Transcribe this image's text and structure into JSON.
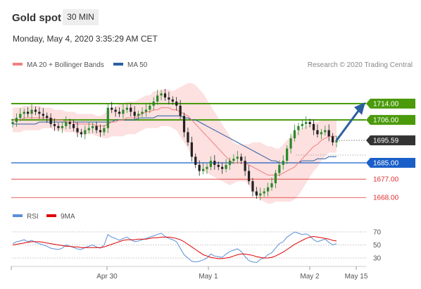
{
  "header": {
    "instrument": "Gold spot",
    "timeframe": "30 MIN",
    "datetime": "Monday, May 4, 2020 3:35:29 AM CET"
  },
  "legend": {
    "ma20": "MA 20 + Bollinger Bands",
    "ma50": "MA 50",
    "rsi": "RSI",
    "rsi_ma": "9MA",
    "credit": "Research © 2020 Trading Central"
  },
  "colors": {
    "ma20": "#f08080",
    "ma50": "#2c5fa0",
    "resistance": "#4a9a0a",
    "support_blue": "#1a5fc8",
    "support_red": "#e03030",
    "price_tag": "#333333",
    "candle_up": "#2a8a2a",
    "candle_down": "#222222"
  },
  "chart_data": {
    "type": "candlestick",
    "y_range": [
      1655,
      1730
    ],
    "last_price": "1695.59",
    "levels": [
      {
        "label": "1714.00",
        "value": 1714,
        "kind": "resistance"
      },
      {
        "label": "1706.00",
        "value": 1706,
        "kind": "resistance"
      },
      {
        "label": "1685.00",
        "value": 1685,
        "kind": "pivot"
      },
      {
        "label": "1677.00",
        "value": 1677,
        "kind": "support"
      },
      {
        "label": "1668.00",
        "value": 1668,
        "kind": "support"
      }
    ],
    "x_ticks": [
      "Apr 30",
      "May 1",
      "May 2",
      "May 15"
    ],
    "rsi_ticks": [
      "70",
      "50",
      "30"
    ],
    "rsi_range": [
      20,
      80
    ],
    "forecast_target": 1714,
    "closes": [
      1705,
      1707,
      1709,
      1710,
      1709,
      1711,
      1710,
      1709,
      1708,
      1707,
      1704,
      1703,
      1702,
      1703,
      1705,
      1704,
      1702,
      1700,
      1699,
      1701,
      1702,
      1703,
      1701,
      1700,
      1702,
      1712,
      1711,
      1710,
      1709,
      1711,
      1712,
      1710,
      1708,
      1709,
      1710,
      1711,
      1713,
      1715,
      1718,
      1719,
      1717,
      1716,
      1715,
      1713,
      1708,
      1700,
      1695,
      1688,
      1684,
      1681,
      1682,
      1683,
      1686,
      1684,
      1683,
      1682,
      1684,
      1686,
      1687,
      1688,
      1686,
      1681,
      1676,
      1671,
      1669,
      1670,
      1671,
      1673,
      1675,
      1680,
      1684,
      1686,
      1692,
      1697,
      1701,
      1703,
      1704,
      1705,
      1704,
      1701,
      1699,
      1700,
      1701,
      1698,
      1695,
      1696
    ],
    "ma20": [
      1706,
      1706,
      1706,
      1707,
      1707,
      1707,
      1707,
      1707,
      1707,
      1707,
      1707,
      1706,
      1706,
      1706,
      1705,
      1705,
      1705,
      1704,
      1704,
      1704,
      1704,
      1704,
      1703,
      1703,
      1703,
      1704,
      1705,
      1705,
      1706,
      1706,
      1707,
      1707,
      1707,
      1708,
      1709,
      1710,
      1710,
      1711,
      1711,
      1712,
      1712,
      1712,
      1711,
      1711,
      1710,
      1709,
      1708,
      1706,
      1704,
      1702,
      1700,
      1698,
      1696,
      1694,
      1692,
      1690,
      1688,
      1686,
      1685,
      1685,
      1685,
      1685,
      1684,
      1683,
      1682,
      1681,
      1680,
      1679,
      1679,
      1679,
      1679,
      1680,
      1681,
      1682,
      1683,
      1685,
      1687,
      1689,
      1691,
      1693,
      1694,
      1696,
      1697,
      1698,
      1698,
      1698
    ],
    "bb_width": [
      6,
      6,
      6,
      6,
      6,
      6,
      6,
      6,
      5,
      5,
      5,
      5,
      5,
      5,
      5,
      5,
      5,
      5,
      5,
      5,
      5,
      5,
      5,
      5,
      6,
      7,
      7,
      7,
      8,
      8,
      8,
      8,
      8,
      8,
      8,
      8,
      8,
      9,
      9,
      9,
      9,
      9,
      9,
      10,
      12,
      14,
      16,
      18,
      19,
      19,
      19,
      18,
      17,
      16,
      15,
      14,
      13,
      12,
      10,
      9,
      9,
      9,
      10,
      12,
      13,
      14,
      14,
      14,
      14,
      13,
      13,
      14,
      15,
      16,
      16,
      16,
      15,
      14,
      13,
      12,
      11,
      10,
      9,
      8,
      8,
      8
    ],
    "ma50": [
      1704,
      1704,
      1704,
      1704,
      1704,
      1704,
      1704,
      1705,
      1705,
      1705,
      1705,
      1705,
      1705,
      1705,
      1705,
      1705,
      1705,
      1705,
      1705,
      1705,
      1705,
      1705,
      1705,
      1705,
      1705,
      1705,
      1705,
      1706,
      1706,
      1706,
      1706,
      1706,
      1706,
      1707,
      1707,
      1707,
      1707,
      1707,
      1708,
      1708,
      1708,
      1708,
      1708,
      1708,
      1708,
      1707,
      1707,
      1706,
      1706,
      1705,
      1704,
      1703,
      1702,
      1701,
      1700,
      1699,
      1698,
      1697,
      1696,
      1695,
      1694,
      1693,
      1692,
      1691,
      1690,
      1689,
      1688,
      1687,
      1686,
      1686,
      1685,
      1685,
      1685,
      1685,
      1685,
      1685,
      1686,
      1686,
      1686,
      1686,
      1687,
      1687,
      1687,
      1688,
      1688,
      1688
    ],
    "rsi": [
      52,
      55,
      56,
      58,
      55,
      57,
      54,
      52,
      50,
      48,
      45,
      44,
      43,
      45,
      50,
      48,
      46,
      44,
      43,
      46,
      48,
      50,
      47,
      45,
      50,
      66,
      62,
      60,
      57,
      60,
      62,
      58,
      55,
      56,
      58,
      60,
      62,
      64,
      66,
      68,
      63,
      60,
      58,
      55,
      45,
      35,
      30,
      25,
      24,
      25,
      27,
      30,
      36,
      33,
      32,
      31,
      36,
      40,
      42,
      44,
      40,
      32,
      26,
      24,
      23,
      28,
      30,
      35,
      38,
      45,
      52,
      55,
      62,
      66,
      70,
      68,
      66,
      67,
      64,
      58,
      55,
      57,
      59,
      54,
      50,
      52
    ],
    "rsi_ma": [
      50,
      51,
      52,
      53,
      54,
      55,
      55,
      55,
      54,
      53,
      52,
      51,
      50,
      49,
      48,
      48,
      47,
      47,
      46,
      46,
      46,
      46,
      46,
      46,
      47,
      49,
      51,
      53,
      55,
      57,
      58,
      58,
      58,
      59,
      59,
      59,
      60,
      61,
      61,
      62,
      62,
      62,
      61,
      60,
      58,
      55,
      51,
      47,
      43,
      39,
      35,
      33,
      31,
      30,
      29,
      29,
      30,
      31,
      33,
      35,
      36,
      36,
      35,
      34,
      32,
      31,
      30,
      30,
      31,
      33,
      36,
      39,
      43,
      47,
      51,
      54,
      57,
      60,
      62,
      63,
      62,
      61,
      60,
      59,
      57,
      56
    ]
  }
}
